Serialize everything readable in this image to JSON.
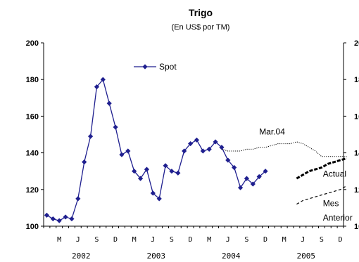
{
  "chart_data": {
    "type": "line",
    "title": "Trigo",
    "subtitle": "(En US$ por TM)",
    "ylim": [
      100,
      200
    ],
    "yticks": [
      "100",
      "120",
      "140",
      "160",
      "180",
      "200"
    ],
    "grid": false,
    "legend_position": "top-left",
    "x_month_labels": [
      "M",
      "J",
      "S",
      "D",
      "M",
      "J",
      "S",
      "D",
      "M",
      "J",
      "S",
      "D",
      "M",
      "J",
      "S",
      "D"
    ],
    "x_year_labels": [
      "2002",
      "2003",
      "2004",
      "2005"
    ],
    "series": [
      {
        "name": "Spot",
        "style": "line-with-diamond-markers",
        "color": "#1f1f8f",
        "x": [
          0,
          1,
          2,
          3,
          4,
          5,
          6,
          7,
          8,
          9,
          10,
          11,
          12,
          13,
          14,
          15,
          16,
          17,
          18,
          19,
          20,
          21,
          22,
          23,
          24,
          25,
          26,
          27,
          28,
          29,
          30,
          31,
          32,
          33,
          34,
          35
        ],
        "values": [
          106,
          104,
          103,
          105,
          104,
          115,
          135,
          149,
          176,
          180,
          167,
          154,
          139,
          141,
          130,
          126,
          131,
          118,
          115,
          133,
          130,
          129,
          141,
          145,
          147,
          141,
          142,
          146,
          143,
          136,
          132,
          121,
          126,
          123,
          127,
          130
        ]
      },
      {
        "name": "Mar.04",
        "style": "dotted",
        "color": "#000000",
        "x": [
          28,
          29,
          30,
          31,
          32,
          33,
          34,
          35,
          36,
          37,
          38,
          39,
          40,
          41,
          42,
          43,
          44,
          45,
          46,
          47,
          48
        ],
        "values": [
          142,
          141,
          141,
          141,
          142,
          142,
          143,
          143,
          144,
          145,
          145,
          145,
          146,
          145,
          143,
          141,
          138,
          138,
          138,
          138,
          138
        ]
      },
      {
        "name": "Actual",
        "style": "thick-dashed",
        "color": "#000000",
        "x": [
          40,
          41,
          42,
          43,
          44,
          45,
          46,
          47,
          48
        ],
        "values": [
          126,
          128,
          130,
          131,
          132,
          134,
          135,
          136,
          137
        ]
      },
      {
        "name": "Mes Anterior",
        "style": "dashed",
        "color": "#000000",
        "x": [
          40,
          41,
          42,
          43,
          44,
          45,
          46,
          47,
          48
        ],
        "values": [
          112,
          114,
          115,
          116,
          117,
          118,
          119,
          120,
          122
        ]
      }
    ],
    "annotations": [
      {
        "text": "Mar.04",
        "x": 34,
        "y": 150
      },
      {
        "text": "Actual",
        "x": 44.2,
        "y": 127
      },
      {
        "text": "Mes",
        "x": 44.2,
        "y": 111
      },
      {
        "text": "Anterior",
        "x": 44.2,
        "y": 103
      }
    ]
  }
}
